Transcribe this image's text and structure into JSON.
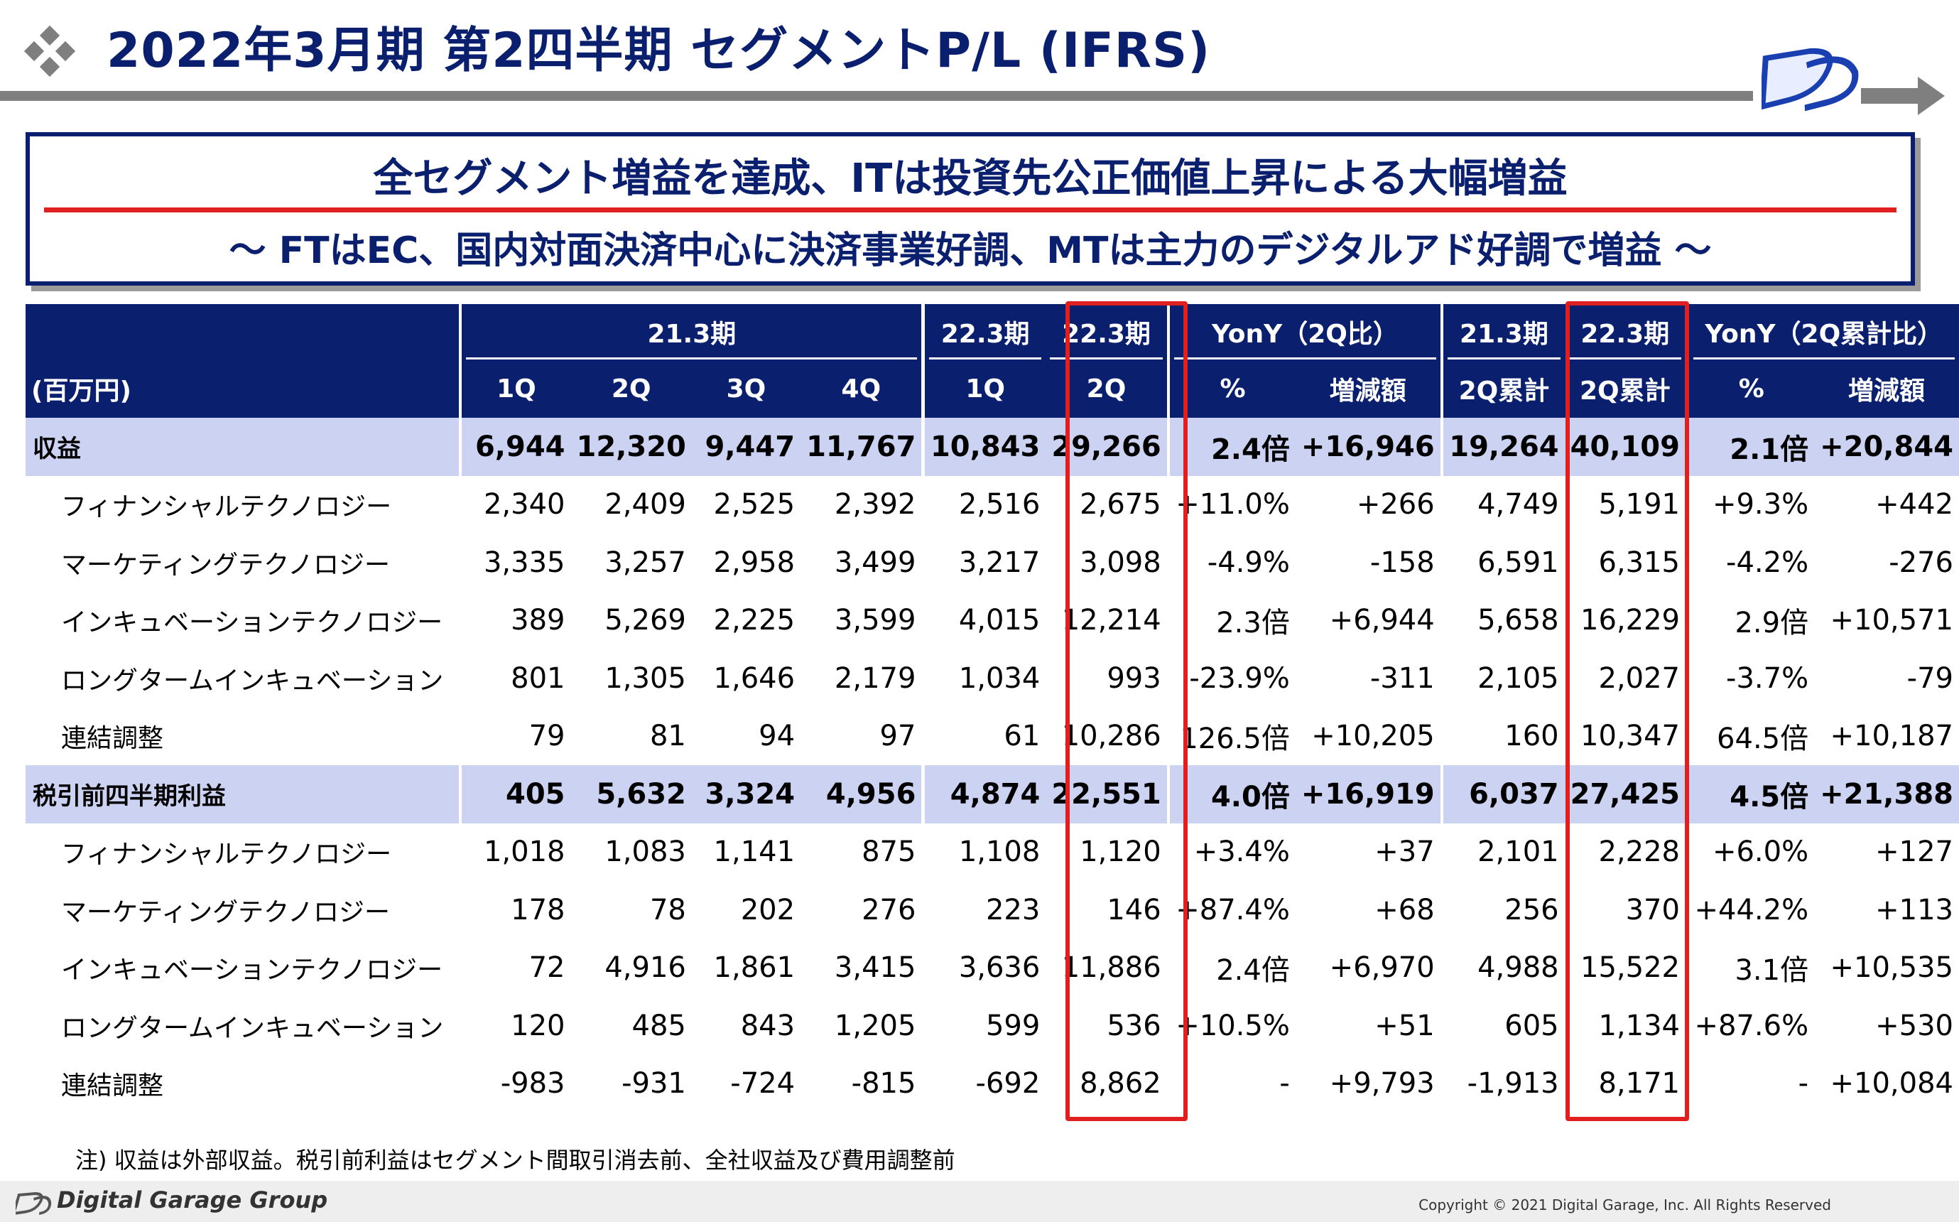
{
  "title": "2022年3月期 第2四半期 セグメントP/L (IFRS)",
  "banner": {
    "main": "全セグメント増益を達成、ITは投資先公正価値上昇による大幅増益",
    "sub": "～ FTはEC、国内対面決済中心に決済事業好調、MTは主力のデジタルアド好調で増益 ～"
  },
  "colors": {
    "navy": "#0a1f6e",
    "accent_red": "#e02020",
    "total_row": "#ccd3f2"
  },
  "table": {
    "unit": "(百万円)",
    "group_headers": [
      "21.3期",
      "22.3期",
      "22.3期",
      "YonY（2Q比）",
      "21.3期",
      "22.3期",
      "YonY（2Q累計比）"
    ],
    "sub_headers": [
      "1Q",
      "2Q",
      "3Q",
      "4Q",
      "1Q",
      "2Q",
      "%",
      "増減額",
      "2Q累計",
      "2Q累計",
      "%",
      "増減額"
    ],
    "rows": [
      {
        "label": "収益",
        "total": true,
        "v": [
          "6,944",
          "12,320",
          "9,447",
          "11,767",
          "10,843",
          "29,266",
          "2.4倍",
          "+16,946",
          "19,264",
          "40,109",
          "2.1倍",
          "+20,844"
        ]
      },
      {
        "label": "フィナンシャルテクノロジー",
        "v": [
          "2,340",
          "2,409",
          "2,525",
          "2,392",
          "2,516",
          "2,675",
          "+11.0%",
          "+266",
          "4,749",
          "5,191",
          "+9.3%",
          "+442"
        ]
      },
      {
        "label": "マーケティングテクノロジー",
        "v": [
          "3,335",
          "3,257",
          "2,958",
          "3,499",
          "3,217",
          "3,098",
          "-4.9%",
          "-158",
          "6,591",
          "6,315",
          "-4.2%",
          "-276"
        ]
      },
      {
        "label": "インキュベーションテクノロジー",
        "v": [
          "389",
          "5,269",
          "2,225",
          "3,599",
          "4,015",
          "12,214",
          "2.3倍",
          "+6,944",
          "5,658",
          "16,229",
          "2.9倍",
          "+10,571"
        ]
      },
      {
        "label": "ロングタームインキュベーション",
        "v": [
          "801",
          "1,305",
          "1,646",
          "2,179",
          "1,034",
          "993",
          "-23.9%",
          "-311",
          "2,105",
          "2,027",
          "-3.7%",
          "-79"
        ]
      },
      {
        "label": "連結調整",
        "v": [
          "79",
          "81",
          "94",
          "97",
          "61",
          "10,286",
          "126.5倍",
          "+10,205",
          "160",
          "10,347",
          "64.5倍",
          "+10,187"
        ]
      },
      {
        "label": "税引前四半期利益",
        "total": true,
        "v": [
          "405",
          "5,632",
          "3,324",
          "4,956",
          "4,874",
          "22,551",
          "4.0倍",
          "+16,919",
          "6,037",
          "27,425",
          "4.5倍",
          "+21,388"
        ]
      },
      {
        "label": "フィナンシャルテクノロジー",
        "v": [
          "1,018",
          "1,083",
          "1,141",
          "875",
          "1,108",
          "1,120",
          "+3.4%",
          "+37",
          "2,101",
          "2,228",
          "+6.0%",
          "+127"
        ]
      },
      {
        "label": "マーケティングテクノロジー",
        "v": [
          "178",
          "78",
          "202",
          "276",
          "223",
          "146",
          "+87.4%",
          "+68",
          "256",
          "370",
          "+44.2%",
          "+113"
        ]
      },
      {
        "label": "インキュベーションテクノロジー",
        "v": [
          "72",
          "4,916",
          "1,861",
          "3,415",
          "3,636",
          "11,886",
          "2.4倍",
          "+6,970",
          "4,988",
          "15,522",
          "3.1倍",
          "+10,535"
        ]
      },
      {
        "label": "ロングタームインキュベーション",
        "v": [
          "120",
          "485",
          "843",
          "1,205",
          "599",
          "536",
          "+10.5%",
          "+51",
          "605",
          "1,134",
          "+87.6%",
          "+530"
        ]
      },
      {
        "label": "連結調整",
        "v": [
          "-983",
          "-931",
          "-724",
          "-815",
          "-692",
          "8,862",
          "-",
          "+9,793",
          "-1,913",
          "8,171",
          "-",
          "+10,084"
        ]
      }
    ]
  },
  "note": "注) 収益は外部収益。税引前利益はセグメント間取引消去前、全社収益及び費用調整前",
  "footer": {
    "company": "Digital Garage Group",
    "copyright": "Copyright © 2021 Digital Garage, Inc. All Rights Reserved"
  }
}
